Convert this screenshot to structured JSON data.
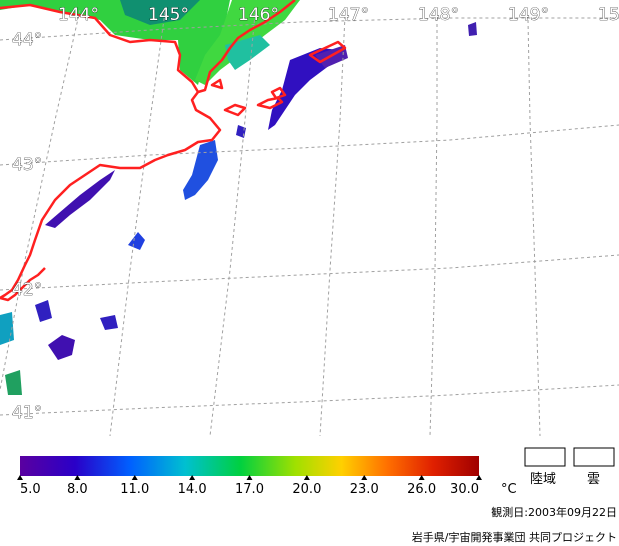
{
  "map": {
    "longitude_labels": [
      "144°",
      "145°",
      "146°",
      "147°",
      "148°",
      "149°",
      "15"
    ],
    "latitude_labels": [
      "44°",
      "43°",
      "42°",
      "41°"
    ]
  },
  "colorbar": {
    "ticks": [
      "5.0",
      "8.0",
      "11.0",
      "14.0",
      "17.0",
      "20.0",
      "23.0",
      "26.0",
      "30.0"
    ],
    "unit": "°C",
    "colors": [
      "#5a00a0",
      "#1a00c8",
      "#0060ff",
      "#00c8c8",
      "#00d040",
      "#c8e000",
      "#ff8800",
      "#e03000",
      "#a00000"
    ]
  },
  "legend_boxes": {
    "land": "陸域",
    "cloud": "雲"
  },
  "footer": {
    "observation_date": "観測日:2003年09月22日",
    "credit": "岩手県/宇宙開発事業団 共同プロジェクト"
  },
  "colors": {
    "coastline": "#ff2020",
    "grid": "#a0a0a0"
  }
}
